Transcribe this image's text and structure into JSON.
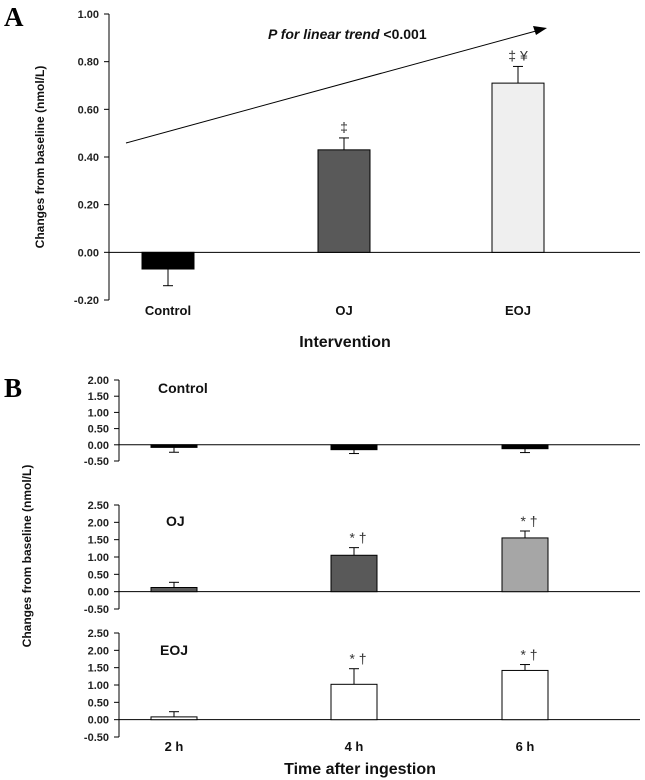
{
  "chart_data": [
    {
      "type": "bar",
      "panel": "A",
      "categories": [
        "Control",
        "OJ",
        "EOJ"
      ],
      "values": [
        -0.07,
        0.43,
        0.71
      ],
      "errors": [
        0.07,
        0.05,
        0.07
      ],
      "colors": [
        "#000000",
        "#595959",
        "#efefef"
      ],
      "significance": [
        "",
        "‡",
        "‡ ¥"
      ],
      "xlabel": "Intervention",
      "ylabel": "Changes from baseline (nmol/L)",
      "ylim": [
        -0.2,
        1.0
      ],
      "yticks": [
        "-0.20",
        "0.00",
        "0.20",
        "0.40",
        "0.60",
        "0.80",
        "1.00"
      ],
      "annotation": {
        "prefix": "P",
        "italic": " for linear trend",
        "suffix": " <0.001"
      }
    },
    {
      "type": "bar",
      "panel": "B",
      "categories": [
        "2 h",
        "4 h",
        "6 h"
      ],
      "xlabel": "Time after ingestion",
      "ylabel": "Changes from baseline (nmol/L)",
      "subplots": [
        {
          "title": "Control",
          "values": [
            -0.08,
            -0.15,
            -0.12
          ],
          "errors": [
            0.15,
            0.12,
            0.12
          ],
          "color": "#000000",
          "significance": [
            "",
            "",
            ""
          ],
          "ylim": [
            -0.5,
            2.0
          ],
          "yticks": [
            "-0.50",
            "0.00",
            "0.50",
            "1.00",
            "1.50",
            "2.00"
          ]
        },
        {
          "title": "OJ",
          "values": [
            0.12,
            1.05,
            1.55
          ],
          "errors": [
            0.15,
            0.22,
            0.2
          ],
          "colors": [
            "#595959",
            "#595959",
            "#a6a6a6"
          ],
          "significance": [
            "",
            "* †",
            "* †"
          ],
          "ylim": [
            -0.5,
            2.5
          ],
          "yticks": [
            "-0.50",
            "0.00",
            "0.50",
            "1.00",
            "1.50",
            "2.00",
            "2.50"
          ]
        },
        {
          "title": "EOJ",
          "values": [
            0.08,
            1.02,
            1.42
          ],
          "errors": [
            0.15,
            0.45,
            0.17
          ],
          "color": "#ffffff",
          "significance": [
            "",
            "* †",
            "* †"
          ],
          "ylim": [
            -0.5,
            2.5
          ],
          "yticks": [
            "-0.50",
            "0.00",
            "0.50",
            "1.00",
            "1.50",
            "2.00",
            "2.50"
          ]
        }
      ]
    }
  ]
}
